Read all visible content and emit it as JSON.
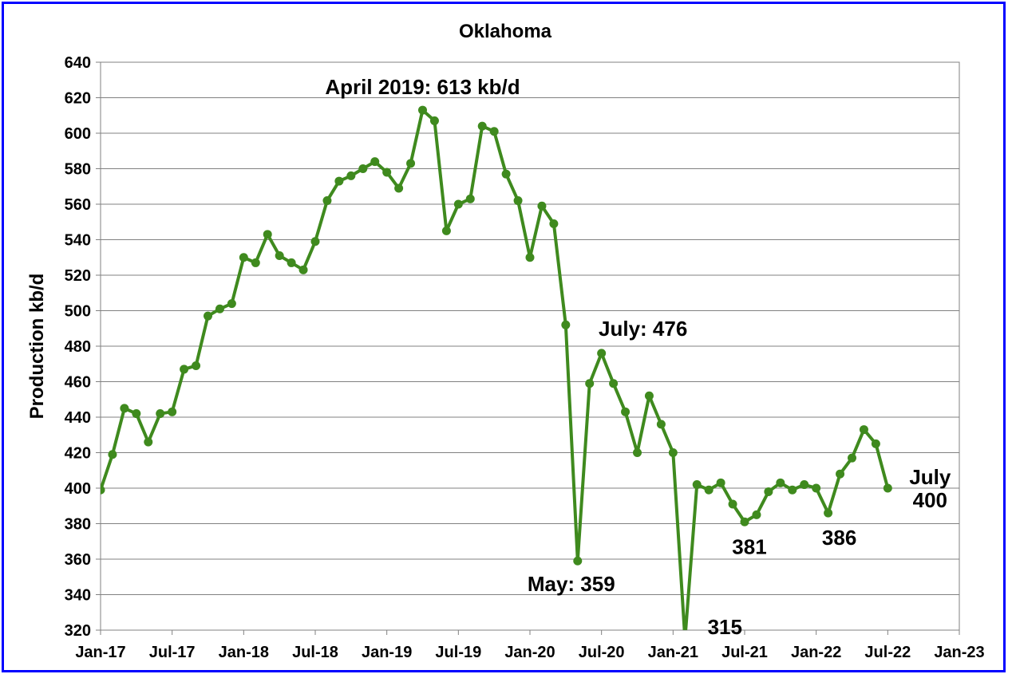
{
  "chart_data": {
    "type": "line",
    "title": "Oklahoma",
    "xlabel": "",
    "ylabel": "Production kb/d",
    "ylim": [
      320,
      640
    ],
    "xlim": [
      "2017-01",
      "2023-01"
    ],
    "yticks": [
      320,
      340,
      360,
      380,
      400,
      420,
      440,
      460,
      480,
      500,
      520,
      540,
      560,
      580,
      600,
      620,
      640
    ],
    "xticks": [
      "Jan-17",
      "Jul-17",
      "Jan-18",
      "Jul-18",
      "Jan-19",
      "Jul-19",
      "Jan-20",
      "Jul-20",
      "Jan-21",
      "Jul-21",
      "Jan-22",
      "Jul-22",
      "Jan-23"
    ],
    "grid": true,
    "legend": "none",
    "line_color": "#3f8a1e",
    "series": [
      {
        "x": [
          "2017-01",
          "2017-02",
          "2017-03",
          "2017-04",
          "2017-05",
          "2017-06",
          "2017-07",
          "2017-08",
          "2017-09",
          "2017-10",
          "2017-11",
          "2017-12",
          "2018-01",
          "2018-02",
          "2018-03",
          "2018-04",
          "2018-05",
          "2018-06",
          "2018-07",
          "2018-08",
          "2018-09",
          "2018-10",
          "2018-11",
          "2018-12",
          "2019-01",
          "2019-02",
          "2019-03",
          "2019-04",
          "2019-05",
          "2019-06",
          "2019-07",
          "2019-08",
          "2019-09",
          "2019-10",
          "2019-11",
          "2019-12",
          "2020-01",
          "2020-02",
          "2020-03",
          "2020-04",
          "2020-05",
          "2020-06",
          "2020-07",
          "2020-08",
          "2020-09",
          "2020-10",
          "2020-11",
          "2020-12",
          "2021-01",
          "2021-02",
          "2021-03",
          "2021-04",
          "2021-05",
          "2021-06",
          "2021-07",
          "2021-08",
          "2021-09",
          "2021-10",
          "2021-11",
          "2021-12",
          "2022-01",
          "2022-02",
          "2022-03",
          "2022-04",
          "2022-05",
          "2022-06",
          "2022-07"
        ],
        "values": [
          399,
          419,
          445,
          442,
          426,
          442,
          443,
          467,
          469,
          497,
          501,
          504,
          530,
          527,
          543,
          531,
          527,
          523,
          539,
          562,
          573,
          576,
          580,
          584,
          578,
          569,
          583,
          613,
          607,
          545,
          560,
          563,
          604,
          601,
          577,
          562,
          530,
          559,
          549,
          492,
          359,
          459,
          476,
          459,
          443,
          420,
          452,
          436,
          420,
          315,
          402,
          399,
          403,
          391,
          381,
          385,
          398,
          403,
          399,
          402,
          400,
          386,
          408,
          417,
          433,
          425,
          400
        ]
      }
    ],
    "annotations": [
      {
        "text": "April 2019: 613 kb/d",
        "x": "2019-04",
        "y": 613
      },
      {
        "text": "July: 476",
        "x": "2020-07",
        "y": 476
      },
      {
        "text": "May: 359",
        "x": "2020-05",
        "y": 359
      },
      {
        "text": "315",
        "x": "2021-02",
        "y": 315
      },
      {
        "text": "381",
        "x": "2021-07",
        "y": 381
      },
      {
        "text": "386",
        "x": "2022-02",
        "y": 386
      },
      {
        "text": "July",
        "x": "2022-07",
        "y": 400
      },
      {
        "text": "400",
        "x": "2022-07",
        "y": 400
      }
    ]
  }
}
